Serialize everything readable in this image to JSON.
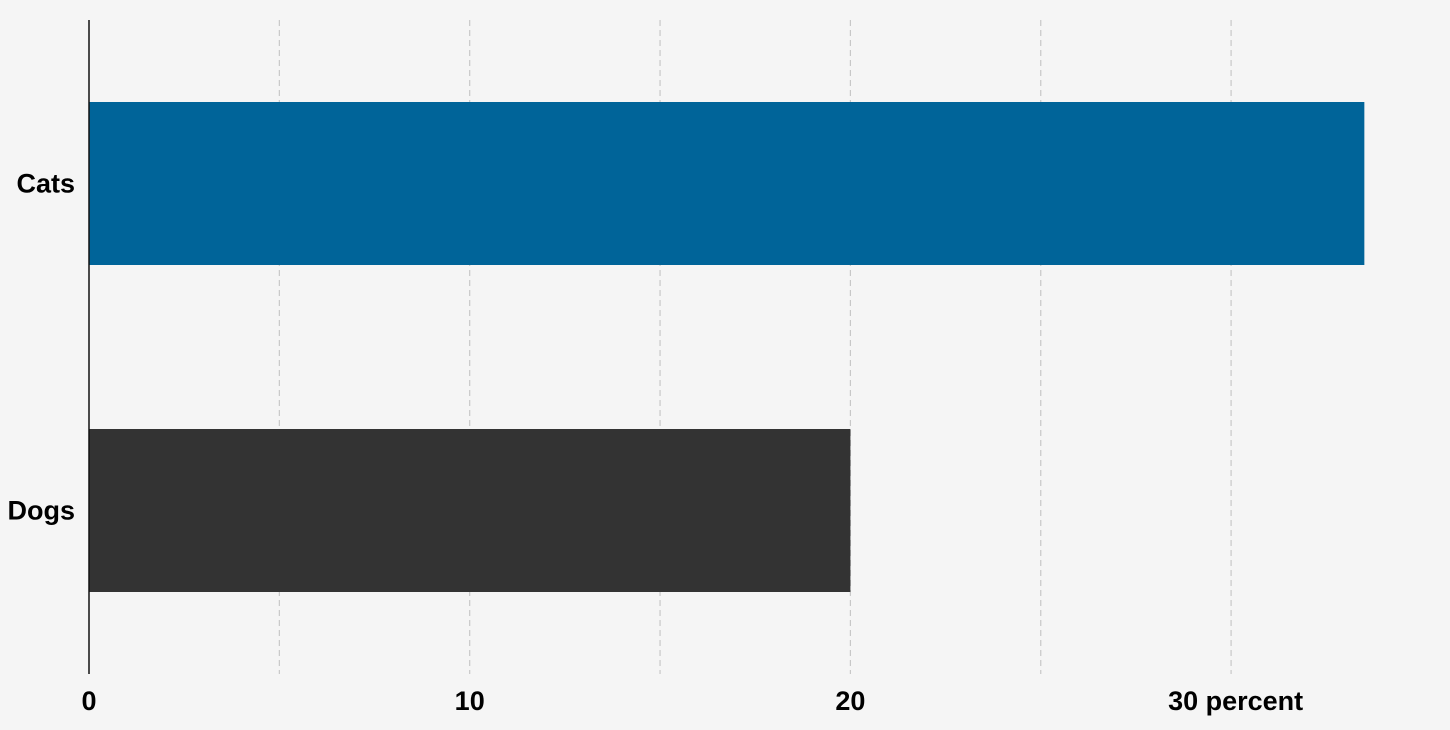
{
  "chart_data": {
    "type": "bar",
    "orientation": "horizontal",
    "categories": [
      "Cats",
      "Dogs"
    ],
    "values": [
      33.5,
      20
    ],
    "bar_colors": [
      "#006499",
      "#333333"
    ],
    "xlim": [
      0,
      35
    ],
    "xticks": [
      {
        "value": 0,
        "label": "0"
      },
      {
        "value": 10,
        "label": "10"
      },
      {
        "value": 20,
        "label": "20"
      },
      {
        "value": 30,
        "label": "30 percent"
      }
    ],
    "grid": true,
    "grid_values": [
      5,
      10,
      15,
      20,
      25,
      30
    ],
    "title": "",
    "xlabel": "",
    "ylabel": ""
  }
}
